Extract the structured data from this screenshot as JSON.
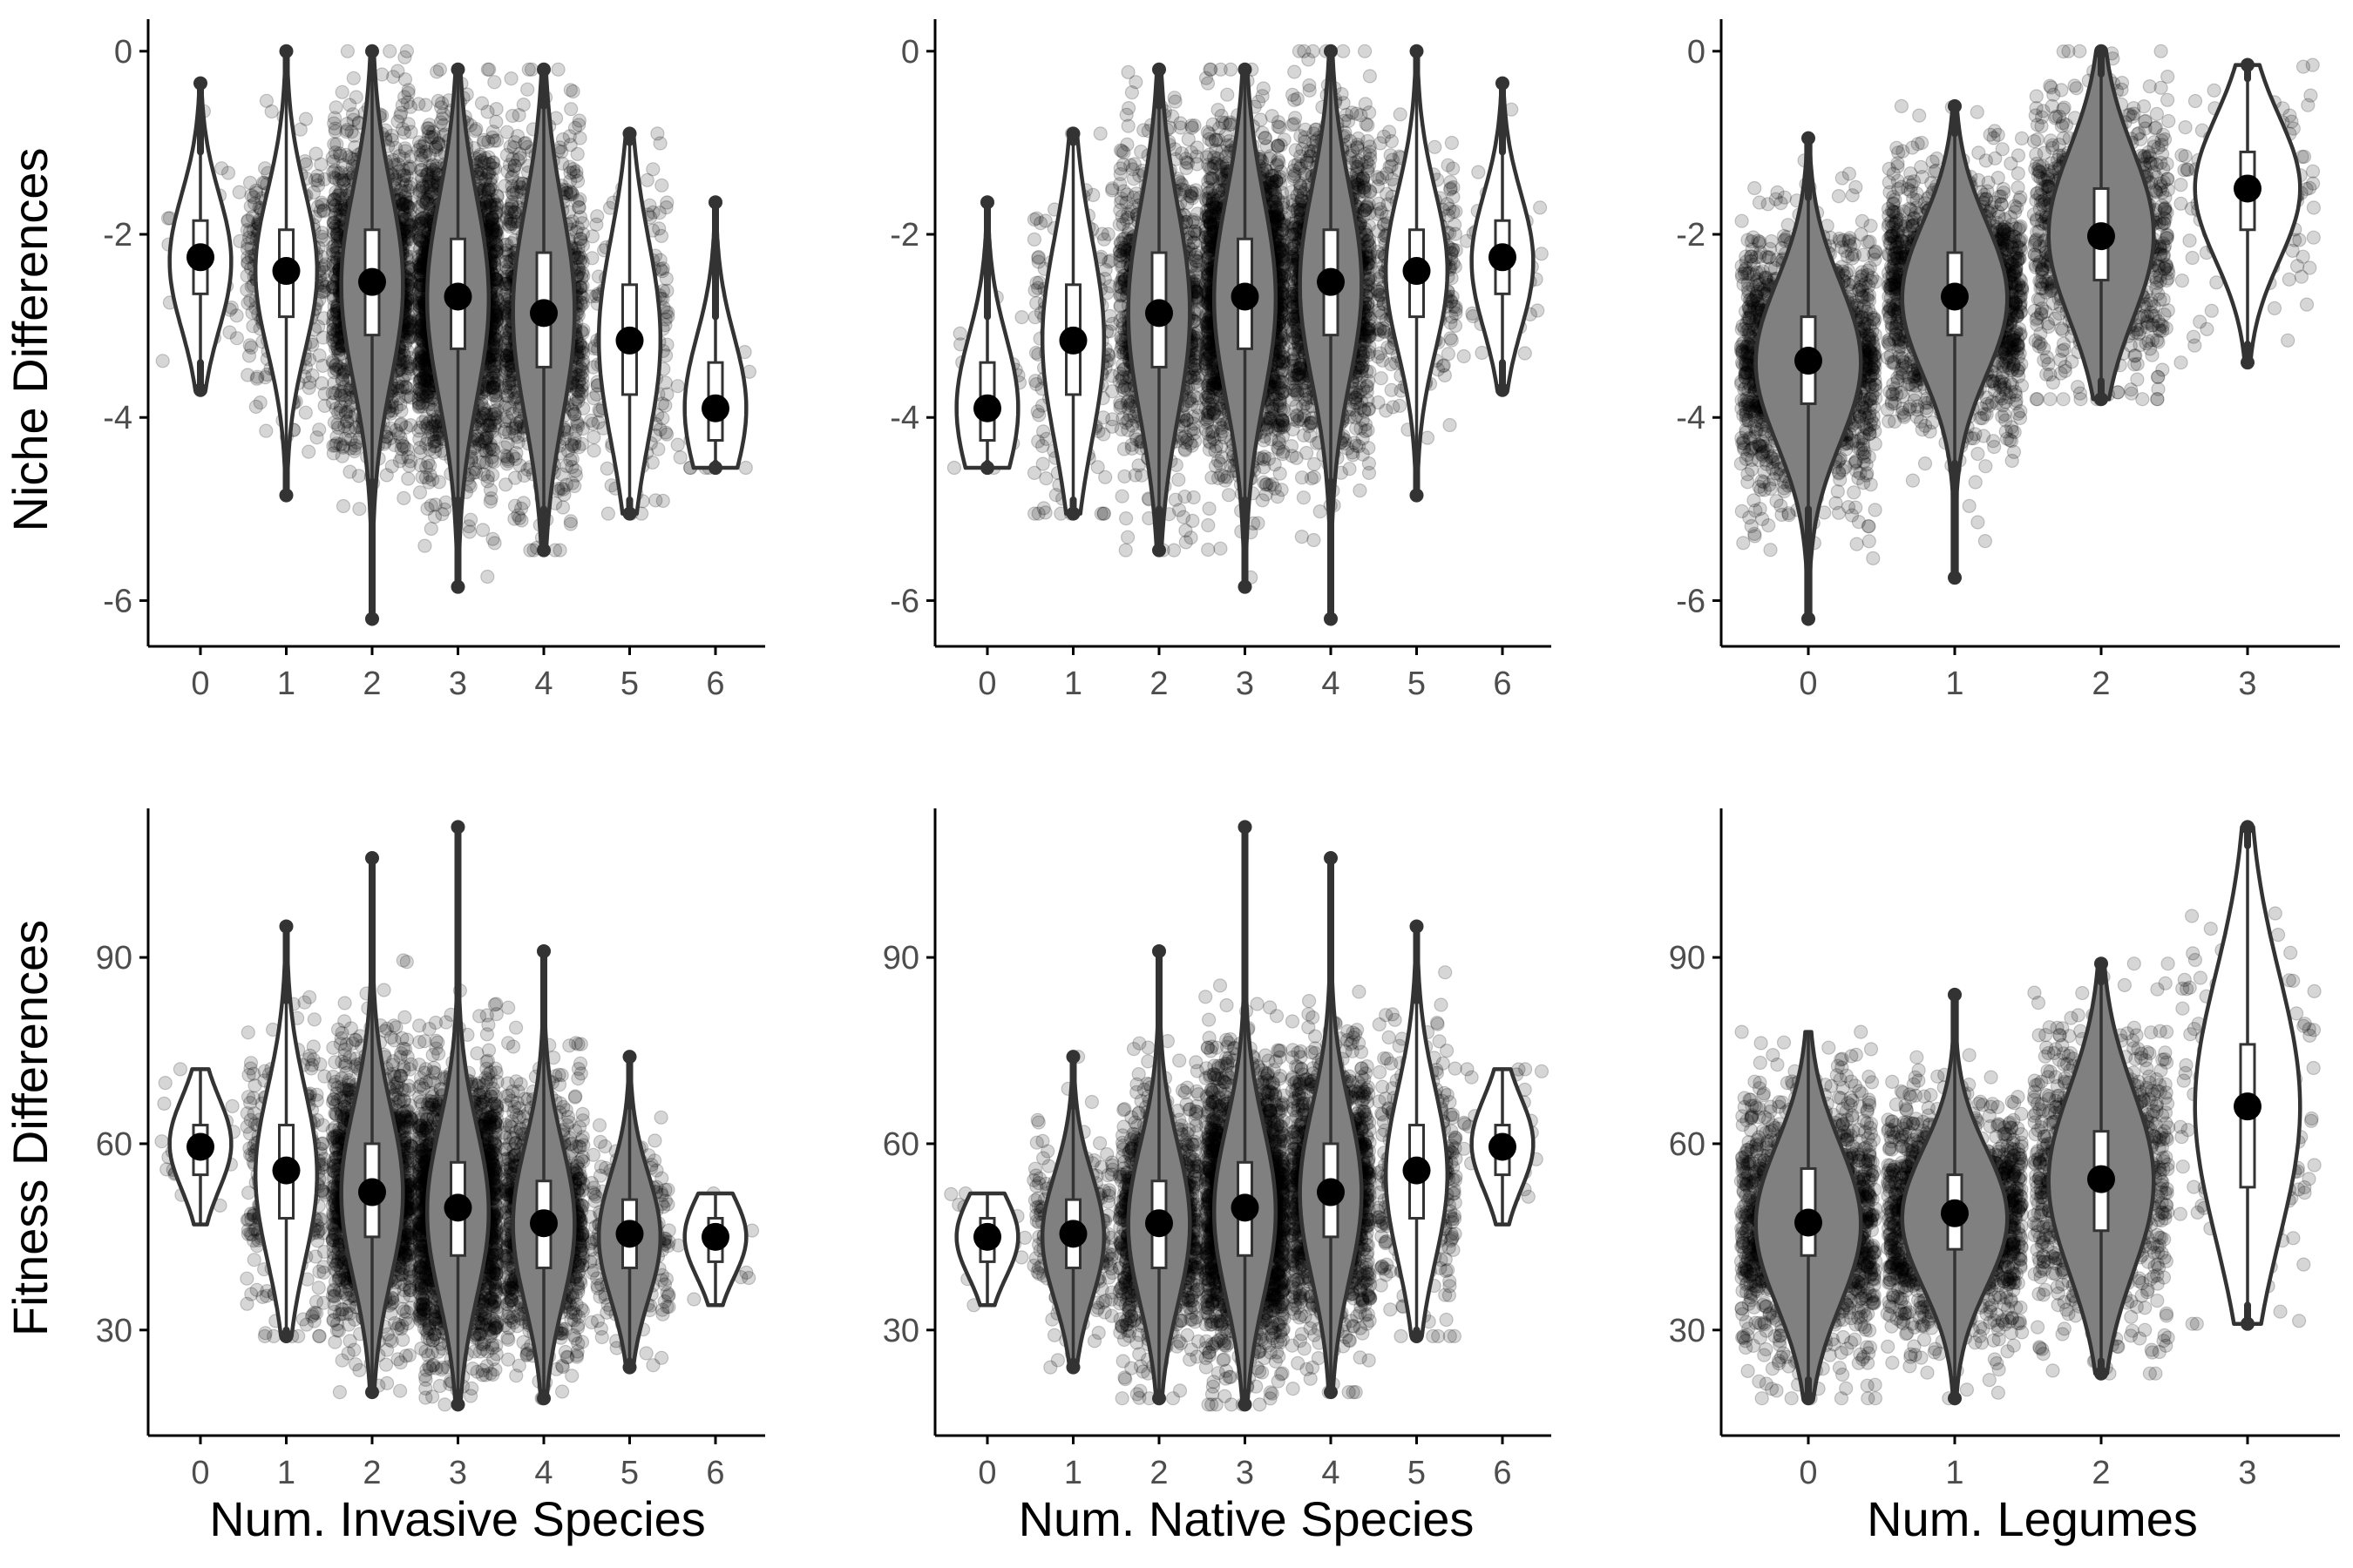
{
  "figure": {
    "row_titles": [
      "Niche Differences",
      "Fitness Differences"
    ],
    "column_titles": [
      "Num. Invasive Species",
      "Num. Native Species",
      "Num. Legumes"
    ]
  },
  "chart_data": [
    {
      "type": "violin",
      "panel": "top-left",
      "ylabel": "Niche Differences",
      "xlabel": "",
      "categories": [
        "0",
        "1",
        "2",
        "3",
        "4",
        "5",
        "6"
      ],
      "ylim": [
        -6.5,
        0.35
      ],
      "yticks": [
        0,
        -2,
        -4,
        -6
      ],
      "yticklabels": [
        "0",
        "-2",
        "-4",
        "-6"
      ],
      "point_density": [
        40,
        400,
        1600,
        2200,
        1100,
        250,
        20
      ],
      "fill": [
        "white",
        "white",
        "gray",
        "gray",
        "gray",
        "white",
        "white"
      ],
      "violins": [
        {
          "mean": -2.25,
          "median": -2.3,
          "q1": -2.65,
          "q3": -1.85,
          "lower_whisker": -3.4,
          "upper_whisker": -1.1,
          "min": -3.7,
          "max": -0.35
        },
        {
          "mean": -2.4,
          "median": -2.4,
          "q1": -2.9,
          "q3": -1.95,
          "lower_whisker": -4.3,
          "upper_whisker": -0.5,
          "min": -4.85,
          "max": 0.0
        },
        {
          "mean": -2.52,
          "median": -2.55,
          "q1": -3.1,
          "q3": -1.95,
          "lower_whisker": -4.7,
          "upper_whisker": -0.3,
          "min": -6.2,
          "max": 0.0
        },
        {
          "mean": -2.68,
          "median": -2.7,
          "q1": -3.25,
          "q3": -2.05,
          "lower_whisker": -4.9,
          "upper_whisker": -0.3,
          "min": -5.85,
          "max": -0.2
        },
        {
          "mean": -2.86,
          "median": -2.85,
          "q1": -3.45,
          "q3": -2.2,
          "lower_whisker": -5.0,
          "upper_whisker": -0.6,
          "min": -5.45,
          "max": -0.2
        },
        {
          "mean": -3.16,
          "median": -3.15,
          "q1": -3.75,
          "q3": -2.55,
          "lower_whisker": -4.9,
          "upper_whisker": -1.0,
          "min": -5.05,
          "max": -0.9
        },
        {
          "mean": -3.9,
          "median": -3.9,
          "q1": -4.25,
          "q3": -3.4,
          "lower_whisker": -4.5,
          "upper_whisker": -2.9,
          "min": -4.55,
          "max": -1.65
        }
      ]
    },
    {
      "type": "violin",
      "panel": "top-middle",
      "ylabel": "",
      "xlabel": "",
      "categories": [
        "0",
        "1",
        "2",
        "3",
        "4",
        "5",
        "6"
      ],
      "ylim": [
        -6.5,
        0.35
      ],
      "yticks": [
        0,
        -2,
        -4,
        -6
      ],
      "yticklabels": [
        "0",
        "-2",
        "-4",
        "-6"
      ],
      "point_density": [
        20,
        250,
        1100,
        2200,
        1600,
        400,
        40
      ],
      "fill": [
        "white",
        "white",
        "gray",
        "gray",
        "gray",
        "white",
        "white"
      ],
      "violins": [
        {
          "mean": -3.9,
          "median": -3.9,
          "q1": -4.25,
          "q3": -3.4,
          "lower_whisker": -4.5,
          "upper_whisker": -2.9,
          "min": -4.55,
          "max": -1.65
        },
        {
          "mean": -3.16,
          "median": -3.15,
          "q1": -3.75,
          "q3": -2.55,
          "lower_whisker": -4.9,
          "upper_whisker": -1.0,
          "min": -5.05,
          "max": -0.9
        },
        {
          "mean": -2.86,
          "median": -2.85,
          "q1": -3.45,
          "q3": -2.2,
          "lower_whisker": -5.0,
          "upper_whisker": -0.6,
          "min": -5.45,
          "max": -0.2
        },
        {
          "mean": -2.68,
          "median": -2.7,
          "q1": -3.25,
          "q3": -2.05,
          "lower_whisker": -4.9,
          "upper_whisker": -0.3,
          "min": -5.85,
          "max": -0.2
        },
        {
          "mean": -2.52,
          "median": -2.55,
          "q1": -3.1,
          "q3": -1.95,
          "lower_whisker": -4.7,
          "upper_whisker": -0.3,
          "min": -6.2,
          "max": 0.0
        },
        {
          "mean": -2.4,
          "median": -2.4,
          "q1": -2.9,
          "q3": -1.95,
          "lower_whisker": -4.3,
          "upper_whisker": -0.5,
          "min": -4.85,
          "max": 0.0
        },
        {
          "mean": -2.25,
          "median": -2.3,
          "q1": -2.65,
          "q3": -1.85,
          "lower_whisker": -3.4,
          "upper_whisker": -1.1,
          "min": -3.7,
          "max": -0.35
        }
      ]
    },
    {
      "type": "violin",
      "panel": "top-right",
      "ylabel": "",
      "xlabel": "",
      "categories": [
        "0",
        "1",
        "2",
        "3"
      ],
      "ylim": [
        -6.5,
        0.35
      ],
      "yticks": [
        0,
        -2,
        -4,
        -6
      ],
      "yticklabels": [
        "0",
        "-2",
        "-4",
        "-6"
      ],
      "point_density": [
        1600,
        1700,
        1000,
        160
      ],
      "fill": [
        "gray",
        "gray",
        "gray",
        "white"
      ],
      "violins": [
        {
          "mean": -3.38,
          "median": -3.4,
          "q1": -3.85,
          "q3": -2.9,
          "lower_whisker": -5.0,
          "upper_whisker": -1.6,
          "min": -6.2,
          "max": -0.95
        },
        {
          "mean": -2.68,
          "median": -2.7,
          "q1": -3.1,
          "q3": -2.2,
          "lower_whisker": -4.5,
          "upper_whisker": -0.9,
          "min": -5.75,
          "max": -0.6
        },
        {
          "mean": -2.02,
          "median": -2.0,
          "q1": -2.5,
          "q3": -1.5,
          "lower_whisker": -3.6,
          "upper_whisker": -0.25,
          "min": -3.8,
          "max": 0.0
        },
        {
          "mean": -1.5,
          "median": -1.5,
          "q1": -1.95,
          "q3": -1.1,
          "lower_whisker": -3.2,
          "upper_whisker": -0.3,
          "min": -3.4,
          "max": -0.15
        }
      ]
    },
    {
      "type": "violin",
      "panel": "bottom-left",
      "ylabel": "Fitness Differences",
      "xlabel": "Num. Invasive Species",
      "categories": [
        "0",
        "1",
        "2",
        "3",
        "4",
        "5",
        "6"
      ],
      "ylim": [
        13,
        114
      ],
      "yticks": [
        30,
        60,
        90
      ],
      "yticklabels": [
        "30",
        "60",
        "90"
      ],
      "point_density": [
        40,
        400,
        1600,
        2200,
        1100,
        250,
        20
      ],
      "fill": [
        "white",
        "white",
        "gray",
        "gray",
        "gray",
        "gray",
        "white"
      ],
      "violins": [
        {
          "mean": 59.5,
          "median": 60,
          "q1": 55,
          "q3": 63,
          "lower_whisker": 47,
          "upper_whisker": 72,
          "min": 47,
          "max": 72
        },
        {
          "mean": 55.7,
          "median": 55,
          "q1": 48,
          "q3": 63,
          "lower_whisker": 30,
          "upper_whisker": 83,
          "min": 29,
          "max": 95
        },
        {
          "mean": 52.2,
          "median": 52,
          "q1": 45,
          "q3": 60,
          "lower_whisker": 22,
          "upper_whisker": 82,
          "min": 20,
          "max": 106
        },
        {
          "mean": 49.7,
          "median": 49,
          "q1": 42,
          "q3": 57,
          "lower_whisker": 20,
          "upper_whisker": 80,
          "min": 18,
          "max": 111
        },
        {
          "mean": 47.2,
          "median": 47,
          "q1": 40,
          "q3": 54,
          "lower_whisker": 20,
          "upper_whisker": 75,
          "min": 19,
          "max": 91
        },
        {
          "mean": 45.5,
          "median": 45,
          "q1": 40,
          "q3": 51,
          "lower_whisker": 25,
          "upper_whisker": 66,
          "min": 24,
          "max": 74
        },
        {
          "mean": 45,
          "median": 45,
          "q1": 41,
          "q3": 48,
          "lower_whisker": 34,
          "upper_whisker": 52,
          "min": 34,
          "max": 52
        }
      ]
    },
    {
      "type": "violin",
      "panel": "bottom-middle",
      "ylabel": "",
      "xlabel": "Num. Native Species",
      "categories": [
        "0",
        "1",
        "2",
        "3",
        "4",
        "5",
        "6"
      ],
      "ylim": [
        13,
        114
      ],
      "yticks": [
        30,
        60,
        90
      ],
      "yticklabels": [
        "30",
        "60",
        "90"
      ],
      "point_density": [
        20,
        250,
        1100,
        2200,
        1600,
        400,
        40
      ],
      "fill": [
        "white",
        "gray",
        "gray",
        "gray",
        "gray",
        "white",
        "white"
      ],
      "violins": [
        {
          "mean": 45,
          "median": 45,
          "q1": 41,
          "q3": 48,
          "lower_whisker": 34,
          "upper_whisker": 52,
          "min": 34,
          "max": 52
        },
        {
          "mean": 45.5,
          "median": 45,
          "q1": 40,
          "q3": 51,
          "lower_whisker": 25,
          "upper_whisker": 66,
          "min": 24,
          "max": 74
        },
        {
          "mean": 47.2,
          "median": 47,
          "q1": 40,
          "q3": 54,
          "lower_whisker": 20,
          "upper_whisker": 75,
          "min": 19,
          "max": 91
        },
        {
          "mean": 49.7,
          "median": 49,
          "q1": 42,
          "q3": 57,
          "lower_whisker": 20,
          "upper_whisker": 80,
          "min": 18,
          "max": 111
        },
        {
          "mean": 52.2,
          "median": 52,
          "q1": 45,
          "q3": 60,
          "lower_whisker": 22,
          "upper_whisker": 82,
          "min": 20,
          "max": 106
        },
        {
          "mean": 55.7,
          "median": 55,
          "q1": 48,
          "q3": 63,
          "lower_whisker": 30,
          "upper_whisker": 83,
          "min": 29,
          "max": 95
        },
        {
          "mean": 59.5,
          "median": 60,
          "q1": 55,
          "q3": 63,
          "lower_whisker": 47,
          "upper_whisker": 72,
          "min": 47,
          "max": 72
        }
      ]
    },
    {
      "type": "violin",
      "panel": "bottom-right",
      "ylabel": "",
      "xlabel": "Num. Legumes",
      "categories": [
        "0",
        "1",
        "2",
        "3"
      ],
      "ylim": [
        13,
        114
      ],
      "yticks": [
        30,
        60,
        90
      ],
      "yticklabels": [
        "30",
        "60",
        "90"
      ],
      "point_density": [
        1600,
        1700,
        1000,
        160
      ],
      "fill": [
        "gray",
        "gray",
        "gray",
        "white"
      ],
      "violins": [
        {
          "mean": 47.3,
          "median": 47,
          "q1": 42,
          "q3": 56,
          "lower_whisker": 22,
          "upper_whisker": 78,
          "min": 19,
          "max": 78
        },
        {
          "mean": 48.8,
          "median": 48,
          "q1": 43,
          "q3": 55,
          "lower_whisker": 22,
          "upper_whisker": 82,
          "min": 19,
          "max": 84
        },
        {
          "mean": 54.3,
          "median": 54,
          "q1": 46,
          "q3": 62,
          "lower_whisker": 25,
          "upper_whisker": 86,
          "min": 23,
          "max": 89
        },
        {
          "mean": 66,
          "median": 66,
          "q1": 53,
          "q3": 76,
          "lower_whisker": 34,
          "upper_whisker": 108,
          "min": 31,
          "max": 111
        }
      ]
    }
  ],
  "colors": {
    "violin_gray": "#808080",
    "outline": "#333333",
    "points": "#000000",
    "axis": "#000000",
    "tick_text": "#4d4d4d",
    "background": "#ffffff"
  }
}
